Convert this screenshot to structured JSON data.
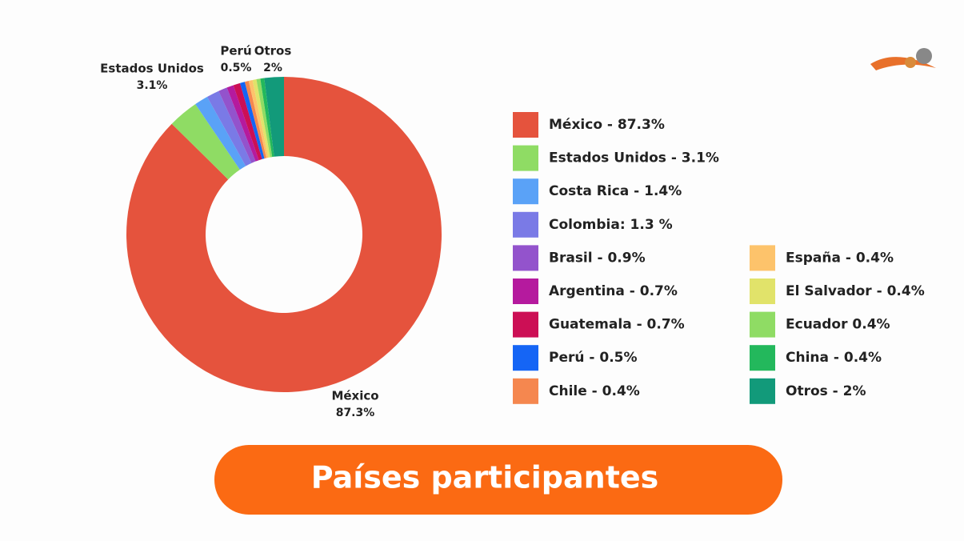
{
  "chart_data": {
    "type": "donut",
    "title": "Países participantes",
    "categories": [
      "México",
      "Estados Unidos",
      "Costa Rica",
      "Colombia",
      "Brasil",
      "Argentina",
      "Guatemala",
      "Perú",
      "Chile",
      "España",
      "El Salvador",
      "Ecuador",
      "China",
      "Otros"
    ],
    "values": [
      87.3,
      3.1,
      1.4,
      1.3,
      0.9,
      0.7,
      0.7,
      0.5,
      0.4,
      0.4,
      0.4,
      0.4,
      0.4,
      2
    ],
    "value_labels": [
      "87.3%",
      "3.1%",
      null,
      null,
      null,
      null,
      null,
      "0.5%",
      null,
      null,
      null,
      null,
      null,
      "2%"
    ],
    "legend_labels": [
      "México - 87.3%",
      "Estados Unidos - 3.1%",
      "Costa Rica - 1.4%",
      "Colombia: 1.3 %",
      "Brasil - 0.9%",
      "Argentina - 0.7%",
      "Guatemala - 0.7%",
      "Perú - 0.5%",
      "Chile - 0.4%",
      "España - 0.4%",
      "El Salvador - 0.4%",
      "Ecuador 0.4%",
      "China - 0.4%",
      "Otros - 2%"
    ],
    "colors": [
      "#e5533d",
      "#8fdc64",
      "#5aa2f7",
      "#7a7ae6",
      "#9353cc",
      "#b51a9e",
      "#cc0f55",
      "#1565f5",
      "#f5874f",
      "#fdc36b",
      "#e1e36a",
      "#8fdc64",
      "#23b85c",
      "#129a7a"
    ]
  }
}
